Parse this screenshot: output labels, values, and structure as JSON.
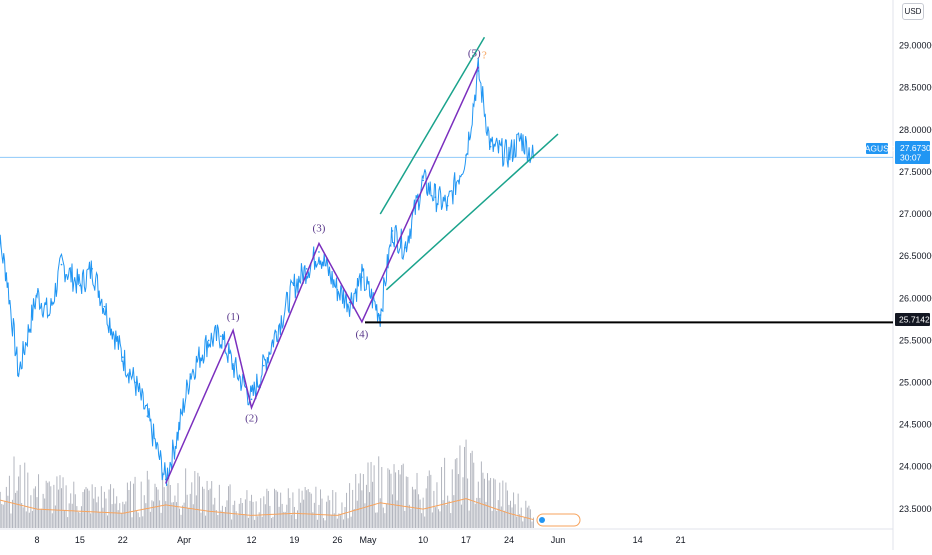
{
  "header": {
    "currency": "USD"
  },
  "symbol": {
    "name": "XAGUSD",
    "last_price": "27.67300",
    "countdown": "30:07",
    "color": "#2196f3"
  },
  "support_line": {
    "price_label": "25.71424",
    "value": 25.71424,
    "color": "#000000"
  },
  "colors": {
    "price_line": "#2196f3",
    "volume": "#b2b5be",
    "volume_ma": "#f7a35c",
    "wave": "#7b2fbe",
    "channel": "#1aa38c"
  },
  "chart_data": {
    "type": "line",
    "x_ticks": [
      "8",
      "15",
      "22",
      "Apr",
      "12",
      "19",
      "26",
      "May",
      "10",
      "17",
      "24",
      "Jun",
      "14",
      "21"
    ],
    "y_ticks": [
      "29.00000",
      "28.50000",
      "28.00000",
      "27.50000",
      "27.00000",
      "26.50000",
      "26.00000",
      "25.50000",
      "25.00000",
      "24.50000",
      "24.00000",
      "23.50000"
    ],
    "ylim": [
      23.45,
      29.15
    ],
    "grid": false,
    "series": [
      {
        "type": "line",
        "x": [
          "Mar 1",
          "Mar 3",
          "Mar 5",
          "Mar 8",
          "Mar 10",
          "Mar 12",
          "Mar 15",
          "Mar 17",
          "Mar 19",
          "Mar 22",
          "Mar 24",
          "Mar 26",
          "Mar 29",
          "Mar 31",
          "Apr 2",
          "Apr 5",
          "Apr 7",
          "Apr 9",
          "Apr 12",
          "Apr 14",
          "Apr 16",
          "Apr 19",
          "Apr 21",
          "Apr 23",
          "Apr 26",
          "Apr 28",
          "Apr 30",
          "May 3",
          "May 5",
          "May 7",
          "May 10",
          "May 12",
          "May 14",
          "May 17",
          "May 19",
          "May 21",
          "May 24",
          "May 26",
          "May 28"
        ],
        "y": [
          26.95,
          26.3,
          25.1,
          26.05,
          25.8,
          26.4,
          26.15,
          26.35,
          25.9,
          25.3,
          25.0,
          24.6,
          23.85,
          24.4,
          25.1,
          25.5,
          25.55,
          25.2,
          24.8,
          25.2,
          25.6,
          26.15,
          26.35,
          26.55,
          26.1,
          25.95,
          26.25,
          25.8,
          26.8,
          26.6,
          27.4,
          27.2,
          27.1,
          27.7,
          28.7,
          27.8,
          27.7,
          27.9,
          27.67
        ]
      },
      {
        "type": "bar",
        "name": "volume",
        "x": [
          "Mar 1",
          "Mar 8",
          "Mar 15",
          "Mar 22",
          "Mar 29",
          "Apr 5",
          "Apr 12",
          "Apr 19",
          "Apr 26",
          "May 3",
          "May 10",
          "May 17",
          "May 24",
          "May 28"
        ],
        "values": [
          70,
          45,
          40,
          35,
          55,
          40,
          30,
          35,
          30,
          60,
          45,
          70,
          35,
          20
        ]
      }
    ],
    "annotations": [
      {
        "text": "(1)",
        "x": "Apr 9",
        "y": 25.6
      },
      {
        "text": "(2)",
        "x": "Apr 12",
        "y": 24.75
      },
      {
        "text": "(3)",
        "x": "Apr 23",
        "y": 26.65
      },
      {
        "text": "(4)",
        "x": "Apr 30",
        "y": 25.75
      },
      {
        "text": "(5)",
        "x": "May 19",
        "y": 28.75
      },
      {
        "text": "?",
        "x": "May 19",
        "y": 28.75
      }
    ],
    "wave_line": [
      [
        "Mar 29",
        23.8
      ],
      [
        "Apr 9",
        25.62
      ],
      [
        "Apr 12",
        24.7
      ],
      [
        "Apr 23",
        26.65
      ],
      [
        "Apr 30",
        25.72
      ],
      [
        "May 19",
        28.75
      ]
    ],
    "channel_lines": [
      {
        "from": [
          "May 3",
          27.0
        ],
        "to": [
          "May 20",
          29.1
        ]
      },
      {
        "from": [
          "May 4",
          26.1
        ],
        "to": [
          "Jun 1",
          27.95
        ]
      }
    ]
  }
}
